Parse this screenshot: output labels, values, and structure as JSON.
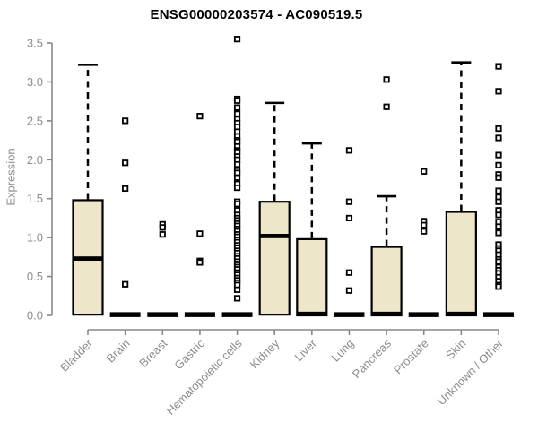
{
  "chart_data": {
    "type": "boxplot",
    "title": "ENSG00000203574 - AC090519.5",
    "ylabel": "Expression",
    "xlabel": "",
    "grid": false,
    "legend": "none",
    "y_axis": {
      "min": 0.0,
      "max": 3.5,
      "step": 0.5,
      "tick_labels": [
        "0.0",
        "0.5",
        "1.0",
        "1.5",
        "2.0",
        "2.5",
        "3.0",
        "3.5"
      ]
    },
    "categories": [
      "Bladder",
      "Brain",
      "Breast",
      "Gastric",
      "Hematopoietic cells",
      "Kidney",
      "Liver",
      "Lung",
      "Pancreas",
      "Prostate",
      "Skin",
      "Unknown / Other"
    ],
    "series": [
      {
        "name": "Bladder",
        "q1": 0.01,
        "median": 0.73,
        "q3": 1.48,
        "whisker_low": 0,
        "whisker_high": 3.22,
        "outliers": []
      },
      {
        "name": "Brain",
        "q1": 0,
        "median": 0.01,
        "q3": 0.02,
        "whisker_low": 0,
        "whisker_high": 0.02,
        "outliers": [
          2.5,
          1.96,
          1.63,
          0.4
        ]
      },
      {
        "name": "Breast",
        "q1": 0,
        "median": 0.01,
        "q3": 0.02,
        "whisker_low": 0,
        "whisker_high": 0.02,
        "outliers": [
          1.17,
          1.13,
          1.04
        ]
      },
      {
        "name": "Gastric",
        "q1": 0,
        "median": 0.01,
        "q3": 0.02,
        "whisker_low": 0,
        "whisker_high": 0.02,
        "outliers": [
          2.56,
          1.05,
          0.7,
          0.68
        ]
      },
      {
        "name": "Hematopoietic cells",
        "q1": 0,
        "median": 0.01,
        "q3": 0.02,
        "whisker_low": 0,
        "whisker_high": 0.02,
        "outliers": [
          3.55,
          2.78,
          2.76,
          2.67,
          2.59,
          2.52,
          2.47,
          2.42,
          2.36,
          2.3,
          2.25,
          2.23,
          2.17,
          2.12,
          2.1,
          2.04,
          2.0,
          1.94,
          1.86,
          1.83,
          1.77,
          1.69,
          1.64,
          1.46,
          1.43,
          1.35,
          1.29,
          1.25,
          1.22,
          1.18,
          1.15,
          1.11,
          1.08,
          1.04,
          1.01,
          0.97,
          0.94,
          0.9,
          0.87,
          0.83,
          0.8,
          0.76,
          0.73,
          0.69,
          0.66,
          0.62,
          0.59,
          0.55,
          0.52,
          0.48,
          0.45,
          0.42,
          0.39,
          0.33,
          0.22
        ]
      },
      {
        "name": "Kidney",
        "q1": 0.01,
        "median": 1.02,
        "q3": 1.46,
        "whisker_low": 0,
        "whisker_high": 2.73,
        "outliers": []
      },
      {
        "name": "Liver",
        "q1": 0,
        "median": 0.02,
        "q3": 0.98,
        "whisker_low": 0,
        "whisker_high": 2.21,
        "outliers": []
      },
      {
        "name": "Lung",
        "q1": 0,
        "median": 0.01,
        "q3": 0.02,
        "whisker_low": 0,
        "whisker_high": 0.02,
        "outliers": [
          2.12,
          1.46,
          1.25,
          0.55,
          0.32
        ]
      },
      {
        "name": "Pancreas",
        "q1": 0,
        "median": 0.02,
        "q3": 0.88,
        "whisker_low": 0,
        "whisker_high": 1.53,
        "outliers": [
          3.03,
          2.68
        ]
      },
      {
        "name": "Prostate",
        "q1": 0,
        "median": 0.01,
        "q3": 0.02,
        "whisker_low": 0,
        "whisker_high": 0.02,
        "outliers": [
          1.85,
          1.21,
          1.16,
          1.08
        ]
      },
      {
        "name": "Skin",
        "q1": 0,
        "median": 0.02,
        "q3": 1.33,
        "whisker_low": 0,
        "whisker_high": 3.25,
        "outliers": []
      },
      {
        "name": "Unknown / Other",
        "q1": 0,
        "median": 0.01,
        "q3": 0.02,
        "whisker_low": 0,
        "whisker_high": 0.02,
        "outliers": [
          3.2,
          2.88,
          2.4,
          2.28,
          2.06,
          1.93,
          1.81,
          1.77,
          1.6,
          1.52,
          1.46,
          1.35,
          1.29,
          1.2,
          1.14,
          1.06,
          0.91,
          0.86,
          0.83,
          0.78,
          0.72,
          0.69,
          0.62,
          0.58,
          0.54,
          0.49,
          0.44,
          0.39,
          0.37
        ]
      }
    ],
    "colors": {
      "box_fill": "#EDE6C8",
      "box_border": "#000000",
      "median": "#000000",
      "whisker": "#000000",
      "outlier_stroke": "#000000",
      "outlier_fill": "#FFFFFF",
      "axis_line": "#888888",
      "tick_text": "#8C8C8C",
      "title_text": "#000000",
      "background": "#FFFFFF"
    }
  }
}
